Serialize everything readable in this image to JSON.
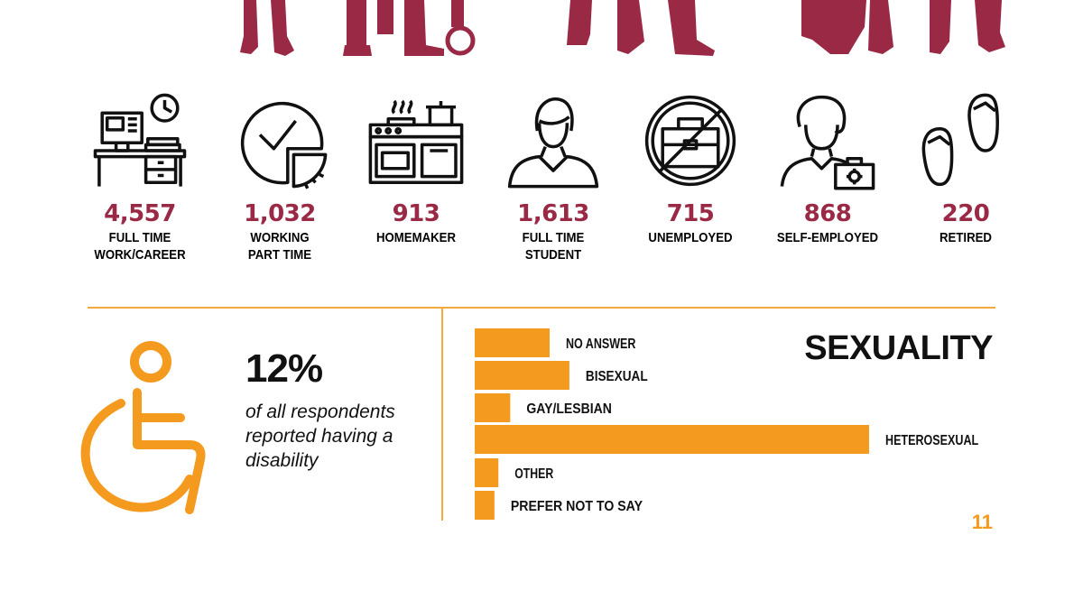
{
  "colors": {
    "maroon": "#9a2946",
    "orange": "#f49a1e",
    "dark": "#111111",
    "divider": "#f5a93a"
  },
  "employment": {
    "items": [
      {
        "value": "4,557",
        "label": "FULL TIME\nWORK/CAREER",
        "icon": "office-desk-icon"
      },
      {
        "value": "1,032",
        "label": "WORKING\nPART TIME",
        "icon": "clock-pie-icon"
      },
      {
        "value": "913",
        "label": "HOMEMAKER",
        "icon": "kitchen-stove-icon"
      },
      {
        "value": "1,613",
        "label": "FULL TIME\nSTUDENT",
        "icon": "student-icon"
      },
      {
        "value": "715",
        "label": "UNEMPLOYED",
        "icon": "no-briefcase-icon"
      },
      {
        "value": "868",
        "label": "SELF-EMPLOYED",
        "icon": "self-employed-person-icon"
      },
      {
        "value": "220",
        "label": "RETIRED",
        "icon": "flip-flops-icon"
      }
    ]
  },
  "disability": {
    "percent": "12%",
    "text": "of all respondents reported having a disability",
    "icon": "wheelchair-icon"
  },
  "page_number": "11",
  "chart_data": {
    "type": "bar",
    "orientation": "horizontal",
    "title": "SEXUALITY",
    "categories": [
      "NO ANSWER",
      "BISEXUAL",
      "GAY/LESBIAN",
      "HETEROSEXUAL",
      "OTHER",
      "PREFER NOT TO SAY"
    ],
    "values": [
      19,
      24,
      9,
      100,
      6,
      5
    ],
    "xlim": [
      0,
      100
    ],
    "grid": false,
    "legend": "none",
    "bar_color": "#f49a1e"
  }
}
